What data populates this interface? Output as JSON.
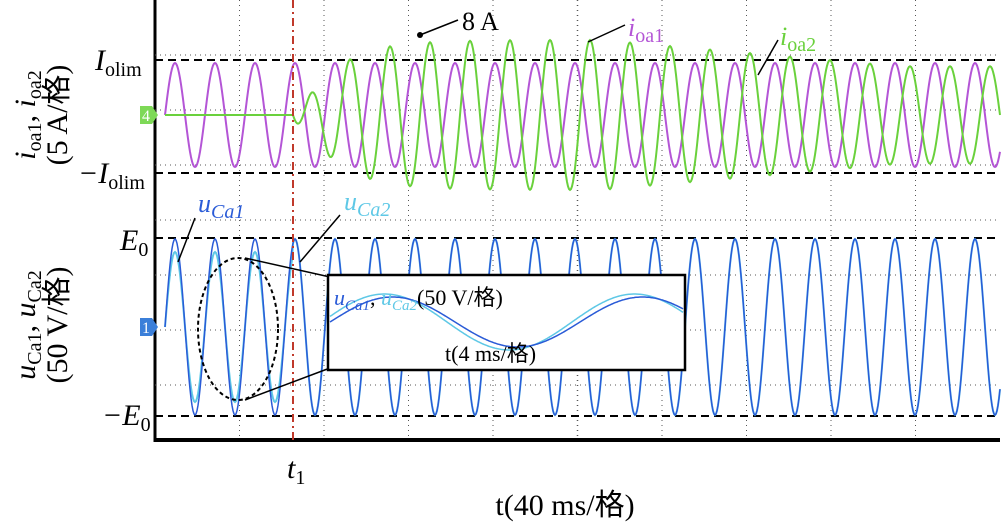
{
  "top_panel": {
    "y_label": {
      "i1": "i",
      "s1": "oa1",
      "sep": ", ",
      "i2": "i",
      "s2": "oa2",
      "unit": "(5 A/格)"
    },
    "upper_level": {
      "main": "I",
      "sub": "olim"
    },
    "lower_level": {
      "main": "−I",
      "sub": "olim"
    },
    "channel": "4",
    "peak_note": "8 A",
    "legend_1": {
      "main": "i",
      "sub": "oa1"
    },
    "legend_2": {
      "main": "i",
      "sub": "oa2"
    }
  },
  "bottom_panel": {
    "y_label": {
      "u1": "u",
      "s1": "Ca1",
      "sep": ", ",
      "u2": "u",
      "s2": "Ca2",
      "unit": "(50 V/格)"
    },
    "upper_level": {
      "main": "E",
      "sub": "0"
    },
    "lower_level": {
      "main": "−E",
      "sub": "0"
    },
    "channel": "1",
    "legend_1": {
      "main": "u",
      "sub": "Ca1"
    },
    "legend_2": {
      "main": "u",
      "sub": "Ca2"
    },
    "inset": {
      "u1": "u",
      "s1": "Ca1",
      "sep": ", ",
      "u2": "u",
      "s2": "Ca2",
      "scale": "(50 V/格)",
      "time": "t(4 ms/格)"
    }
  },
  "event_label": {
    "main": "t",
    "sub": "1"
  },
  "x_label": "t(40 ms/格)"
}
